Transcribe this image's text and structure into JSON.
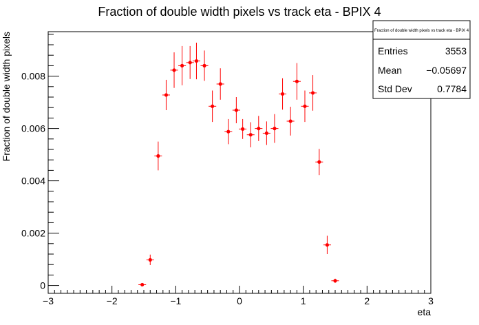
{
  "chart_data": {
    "type": "scatter",
    "title": "Fraction of double width pixels vs track eta - BPIX 4",
    "xlabel": "eta",
    "ylabel": "Fraction of double width pixels",
    "xlim": [
      -3,
      3
    ],
    "ylim": [
      -0.0003,
      0.0097
    ],
    "grid": false,
    "legend": "none",
    "marker_color": "#ff0000",
    "x_ticks": [
      {
        "v": -3,
        "label": "−3"
      },
      {
        "v": -2,
        "label": "−2"
      },
      {
        "v": -1,
        "label": "−1"
      },
      {
        "v": 0,
        "label": "0"
      },
      {
        "v": 1,
        "label": "1"
      },
      {
        "v": 2,
        "label": "2"
      },
      {
        "v": 3,
        "label": "3"
      }
    ],
    "y_ticks": [
      {
        "v": 0,
        "label": "0"
      },
      {
        "v": 0.002,
        "label": "0.002"
      },
      {
        "v": 0.004,
        "label": "0.004"
      },
      {
        "v": 0.006,
        "label": "0.006"
      },
      {
        "v": 0.008,
        "label": "0.008"
      }
    ],
    "bin_half_width": 0.06,
    "points": [
      {
        "x": -1.525,
        "y": 3e-05,
        "err": 2e-05
      },
      {
        "x": -1.4,
        "y": 0.00098,
        "err": 0.0002
      },
      {
        "x": -1.275,
        "y": 0.00495,
        "err": 0.00055
      },
      {
        "x": -1.15,
        "y": 0.00728,
        "err": 0.00058
      },
      {
        "x": -1.025,
        "y": 0.00823,
        "err": 0.00068
      },
      {
        "x": -0.9,
        "y": 0.0084,
        "err": 0.00075
      },
      {
        "x": -0.775,
        "y": 0.00852,
        "err": 0.00063
      },
      {
        "x": -0.675,
        "y": 0.00858,
        "err": 0.0007
      },
      {
        "x": -0.55,
        "y": 0.0084,
        "err": 0.00058
      },
      {
        "x": -0.425,
        "y": 0.00685,
        "err": 0.0006
      },
      {
        "x": -0.3,
        "y": 0.0077,
        "err": 0.0006
      },
      {
        "x": -0.175,
        "y": 0.00588,
        "err": 0.00048
      },
      {
        "x": -0.05,
        "y": 0.0067,
        "err": 0.0005
      },
      {
        "x": 0.05,
        "y": 0.00598,
        "err": 0.00038
      },
      {
        "x": 0.175,
        "y": 0.00576,
        "err": 0.00048
      },
      {
        "x": 0.3,
        "y": 0.006,
        "err": 0.00048
      },
      {
        "x": 0.425,
        "y": 0.00582,
        "err": 0.00045
      },
      {
        "x": 0.55,
        "y": 0.006,
        "err": 0.00055
      },
      {
        "x": 0.675,
        "y": 0.00732,
        "err": 0.0006
      },
      {
        "x": 0.8,
        "y": 0.00628,
        "err": 0.00055
      },
      {
        "x": 0.9,
        "y": 0.0078,
        "err": 0.0007
      },
      {
        "x": 1.025,
        "y": 0.00685,
        "err": 0.0006
      },
      {
        "x": 1.15,
        "y": 0.00736,
        "err": 0.00068
      },
      {
        "x": 1.25,
        "y": 0.00472,
        "err": 0.0005
      },
      {
        "x": 1.375,
        "y": 0.00155,
        "err": 0.00035
      },
      {
        "x": 1.5,
        "y": 0.00018,
        "err": 8e-05
      }
    ]
  },
  "stats_box": {
    "title": "Fraction of double width pixels vs track eta - BPIX 4",
    "rows": [
      {
        "label": "Entries",
        "value": "3553"
      },
      {
        "label": "Mean",
        "value": "−0.05697"
      },
      {
        "label": "Std Dev",
        "value": "0.7784"
      }
    ]
  }
}
